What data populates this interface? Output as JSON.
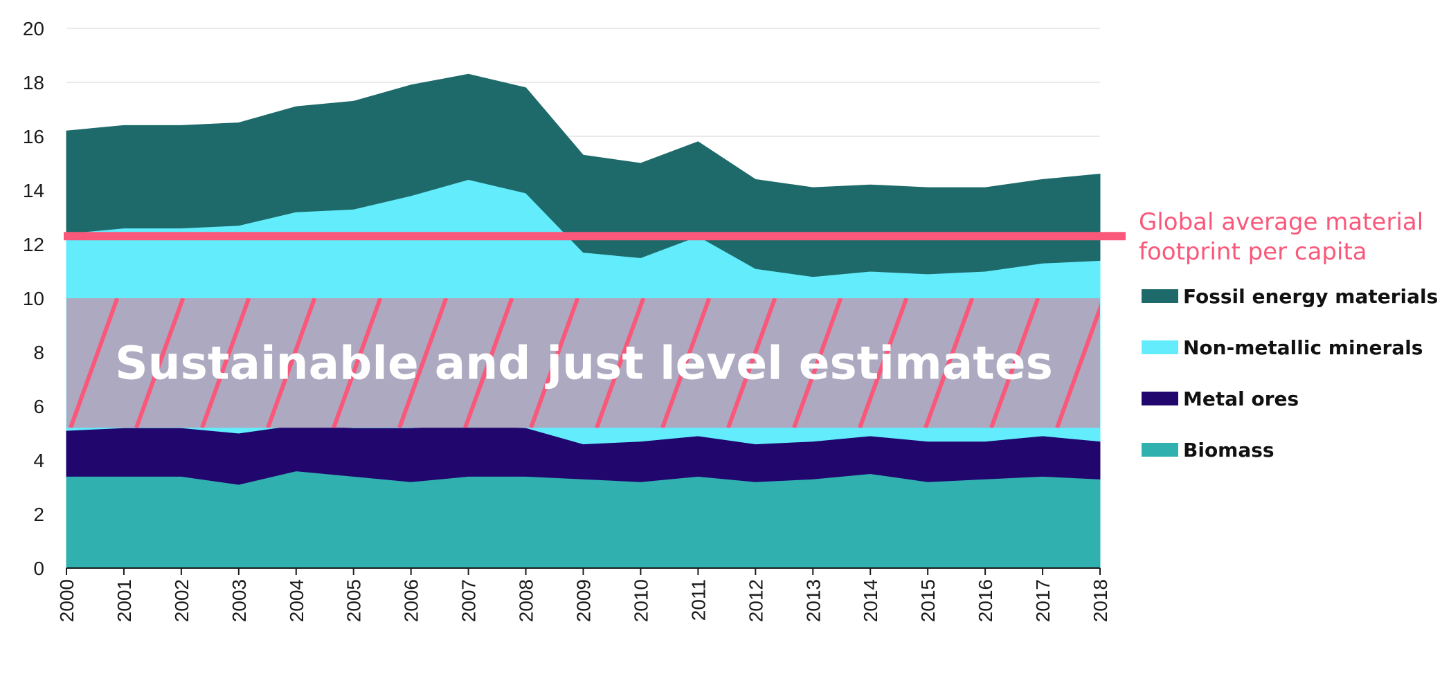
{
  "chart_data": {
    "type": "area",
    "stacked": true,
    "x": [
      "2000",
      "2001",
      "2002",
      "2003",
      "2004",
      "2005",
      "2006",
      "2007",
      "2008",
      "2009",
      "2010",
      "2011",
      "2012",
      "2013",
      "2014",
      "2015",
      "2016",
      "2017",
      "2018"
    ],
    "ylim": [
      0,
      20
    ],
    "yticks": [
      "0",
      "2",
      "4",
      "6",
      "8",
      "10",
      "12",
      "14",
      "16",
      "18",
      "20"
    ],
    "grid": true,
    "series": [
      {
        "name": "Biomass",
        "color": "#31b0b0",
        "values": [
          3.4,
          3.4,
          3.4,
          3.1,
          3.6,
          3.4,
          3.2,
          3.4,
          3.4,
          3.3,
          3.2,
          3.4,
          3.2,
          3.3,
          3.5,
          3.2,
          3.3,
          3.4,
          3.3
        ]
      },
      {
        "name": "Metal ores",
        "color": "#21066e",
        "values": [
          1.7,
          1.8,
          1.8,
          1.9,
          1.7,
          1.8,
          2.0,
          1.9,
          1.8,
          1.3,
          1.5,
          1.5,
          1.4,
          1.4,
          1.4,
          1.5,
          1.4,
          1.5,
          1.4
        ]
      },
      {
        "name": "Non-metallic minerals",
        "color": "#63ecfc",
        "values": [
          7.3,
          7.4,
          7.4,
          7.7,
          7.9,
          8.1,
          8.6,
          9.1,
          8.7,
          7.1,
          6.8,
          7.4,
          6.5,
          6.1,
          6.1,
          6.2,
          6.3,
          6.4,
          6.7
        ]
      },
      {
        "name": "Fossil energy materials",
        "color": "#1e6a6a",
        "values": [
          3.8,
          3.8,
          3.8,
          3.8,
          3.9,
          4.0,
          4.1,
          3.9,
          3.9,
          3.6,
          3.5,
          3.5,
          3.3,
          3.3,
          3.2,
          3.2,
          3.1,
          3.1,
          3.2
        ]
      }
    ],
    "reference_line": {
      "value": 12.3,
      "label_lines": [
        "Global average material",
        "footprint per capita"
      ],
      "color": "#f9587a"
    },
    "band": {
      "from": 5.2,
      "to": 10,
      "label": "Sustainable and just level estimates",
      "fill": "#ada9c0",
      "hatch_color": "#f9587a"
    },
    "legend": {
      "placement": "right",
      "items": [
        "Fossil energy materials",
        "Non-metallic minerals",
        "Metal ores",
        "Biomass"
      ]
    },
    "xlabel": "",
    "ylabel": ""
  }
}
